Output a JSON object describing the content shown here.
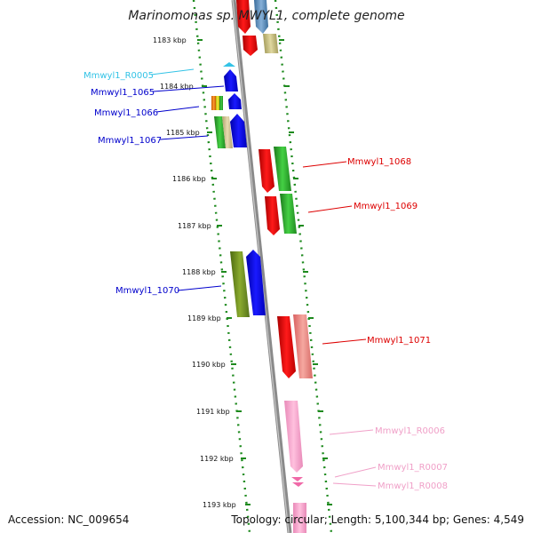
{
  "title": "Marinomonas sp. MWYL1, complete genome",
  "footer": {
    "accession": "Accession: NC_009654",
    "topology": "Topology: circular; Length: 5,100,344 bp; Genes: 4,549"
  },
  "ruler": [
    {
      "label": "1183 kbp"
    },
    {
      "label": "1184 kbp"
    },
    {
      "label": "1185 kbp"
    },
    {
      "label": "1186 kbp"
    },
    {
      "label": "1187 kbp"
    },
    {
      "label": "1188 kbp"
    },
    {
      "label": "1189 kbp"
    },
    {
      "label": "1190 kbp"
    },
    {
      "label": "1191 kbp"
    },
    {
      "label": "1192 kbp"
    },
    {
      "label": "1193 kbp"
    }
  ],
  "genes": [
    {
      "label": "Mmwyl1_R0005",
      "color": "#33c3e6",
      "side": "left"
    },
    {
      "label": "Mmwyl1_1065",
      "color": "#0000cc",
      "side": "left"
    },
    {
      "label": "Mmwyl1_1066",
      "color": "#0000cc",
      "side": "left"
    },
    {
      "label": "Mmwyl1_1067",
      "color": "#0000cc",
      "side": "left"
    },
    {
      "label": "Mmwyl1_1068",
      "color": "#dd0000",
      "side": "right"
    },
    {
      "label": "Mmwyl1_1069",
      "color": "#dd0000",
      "side": "right"
    },
    {
      "label": "Mmwyl1_1070",
      "color": "#0000cc",
      "side": "left"
    },
    {
      "label": "Mmwyl1_1071",
      "color": "#dd0000",
      "side": "right"
    },
    {
      "label": "Mmwyl1_R0006",
      "color": "#f0a0c8",
      "side": "right"
    },
    {
      "label": "Mmwyl1_R0007",
      "color": "#f0a0c8",
      "side": "right"
    },
    {
      "label": "Mmwyl1_R0008",
      "color": "#f0a0c8",
      "side": "right"
    }
  ]
}
